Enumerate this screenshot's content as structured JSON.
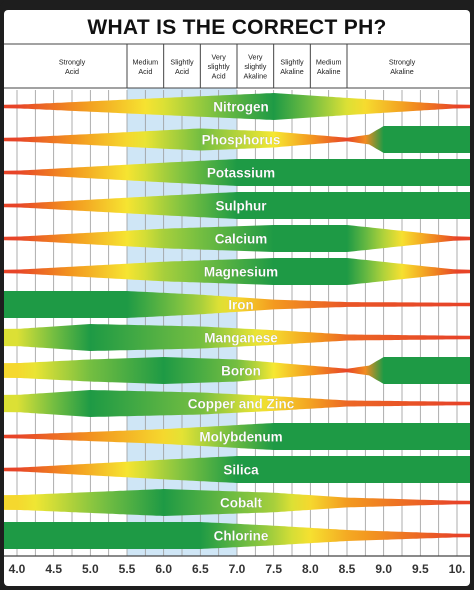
{
  "chart_data": {
    "type": "heatmap",
    "title": "WHAT IS THE CORRECT PH?",
    "x_ticks": [
      "4.0",
      "4.5",
      "5.0",
      "5.5",
      "6.0",
      "6.5",
      "7.0",
      "7.5",
      "8.0",
      "8.5",
      "9.0",
      "9.5",
      "10."
    ],
    "x_range": [
      4.0,
      10.0
    ],
    "acidity_categories": [
      {
        "label": [
          "Strongly",
          "Acid"
        ],
        "from": 4.0,
        "to": 5.5
      },
      {
        "label": [
          "Medium",
          "Acid"
        ],
        "from": 5.5,
        "to": 6.0
      },
      {
        "label": [
          "Slightly",
          "Acid"
        ],
        "from": 6.0,
        "to": 6.5
      },
      {
        "label": [
          "Very",
          "slightly",
          "Acid"
        ],
        "from": 6.5,
        "to": 7.0
      },
      {
        "label": [
          "Very",
          "slightly",
          "Akaline"
        ],
        "from": 7.0,
        "to": 7.5
      },
      {
        "label": [
          "Slightly",
          "Akaline"
        ],
        "from": 7.5,
        "to": 8.0
      },
      {
        "label": [
          "Medium",
          "Akaline"
        ],
        "from": 8.0,
        "to": 8.5
      },
      {
        "label": [
          "Strongly",
          "Akaline"
        ],
        "from": 8.5,
        "to": 10.0
      }
    ],
    "optimal_zone": {
      "from": 5.5,
      "to": 7.0
    },
    "nutrients": [
      {
        "name": "Nitrogen",
        "profile": [
          [
            4.0,
            0.05
          ],
          [
            6.0,
            0.6
          ],
          [
            7.5,
            1.0
          ],
          [
            8.5,
            0.6
          ],
          [
            10.0,
            0.05
          ]
        ]
      },
      {
        "name": "Phosphorus",
        "profile": [
          [
            4.0,
            0.05
          ],
          [
            6.5,
            0.8
          ],
          [
            7.5,
            0.55
          ],
          [
            8.5,
            0.05
          ],
          [
            8.8,
            0.3
          ],
          [
            9.0,
            1.0
          ],
          [
            10.0,
            1.0
          ]
        ]
      },
      {
        "name": "Potassium",
        "profile": [
          [
            4.0,
            0.05
          ],
          [
            6.0,
            0.7
          ],
          [
            7.0,
            1.0
          ],
          [
            10.0,
            1.0
          ]
        ]
      },
      {
        "name": "Sulphur",
        "profile": [
          [
            4.0,
            0.05
          ],
          [
            6.0,
            0.7
          ],
          [
            7.0,
            1.0
          ],
          [
            10.0,
            1.0
          ]
        ]
      },
      {
        "name": "Calcium",
        "profile": [
          [
            4.0,
            0.05
          ],
          [
            6.0,
            0.7
          ],
          [
            7.5,
            1.0
          ],
          [
            8.5,
            1.0
          ],
          [
            10.0,
            0.05
          ]
        ]
      },
      {
        "name": "Magnesium",
        "profile": [
          [
            4.0,
            0.05
          ],
          [
            6.0,
            0.7
          ],
          [
            7.5,
            1.0
          ],
          [
            8.5,
            1.0
          ],
          [
            10.0,
            0.05
          ]
        ]
      },
      {
        "name": "Iron",
        "profile": [
          [
            4.0,
            1.0
          ],
          [
            5.5,
            1.0
          ],
          [
            6.5,
            0.7
          ],
          [
            7.5,
            0.3
          ],
          [
            8.5,
            0.1
          ],
          [
            10.0,
            0.05
          ]
        ]
      },
      {
        "name": "Manganese",
        "profile": [
          [
            4.0,
            0.6
          ],
          [
            5.0,
            1.0
          ],
          [
            6.5,
            0.8
          ],
          [
            7.5,
            0.5
          ],
          [
            8.5,
            0.15
          ],
          [
            10.0,
            0.05
          ]
        ]
      },
      {
        "name": "Boron",
        "profile": [
          [
            4.0,
            0.5
          ],
          [
            5.0,
            0.8
          ],
          [
            6.0,
            1.0
          ],
          [
            7.0,
            0.8
          ],
          [
            8.5,
            0.05
          ],
          [
            8.8,
            0.3
          ],
          [
            9.0,
            1.0
          ],
          [
            10.0,
            1.0
          ]
        ]
      },
      {
        "name": "Copper and Zinc",
        "profile": [
          [
            4.0,
            0.6
          ],
          [
            5.0,
            1.0
          ],
          [
            6.5,
            0.8
          ],
          [
            7.5,
            0.5
          ],
          [
            8.5,
            0.15
          ],
          [
            10.0,
            0.05
          ]
        ]
      },
      {
        "name": "Molybdenum",
        "profile": [
          [
            4.0,
            0.05
          ],
          [
            6.0,
            0.5
          ],
          [
            7.5,
            1.0
          ],
          [
            10.0,
            1.0
          ]
        ]
      },
      {
        "name": "Silica",
        "profile": [
          [
            4.0,
            0.05
          ],
          [
            6.0,
            0.7
          ],
          [
            7.0,
            1.0
          ],
          [
            10.0,
            1.0
          ]
        ]
      },
      {
        "name": "Cobalt",
        "profile": [
          [
            4.0,
            0.5
          ],
          [
            6.0,
            1.0
          ],
          [
            7.5,
            0.7
          ],
          [
            8.5,
            0.3
          ],
          [
            10.0,
            0.05
          ]
        ]
      },
      {
        "name": "Chlorine",
        "profile": [
          [
            4.0,
            1.0
          ],
          [
            6.5,
            1.0
          ],
          [
            7.5,
            0.7
          ],
          [
            8.5,
            0.35
          ],
          [
            10.0,
            0.05
          ]
        ]
      }
    ],
    "colors": {
      "red": "#e4332a",
      "orange": "#f39a1f",
      "yellow": "#f6e832",
      "lightgreen": "#7dc241",
      "green": "#1e9a45",
      "shade": "#cfe6f6",
      "grid": "#9a9a9a"
    }
  }
}
